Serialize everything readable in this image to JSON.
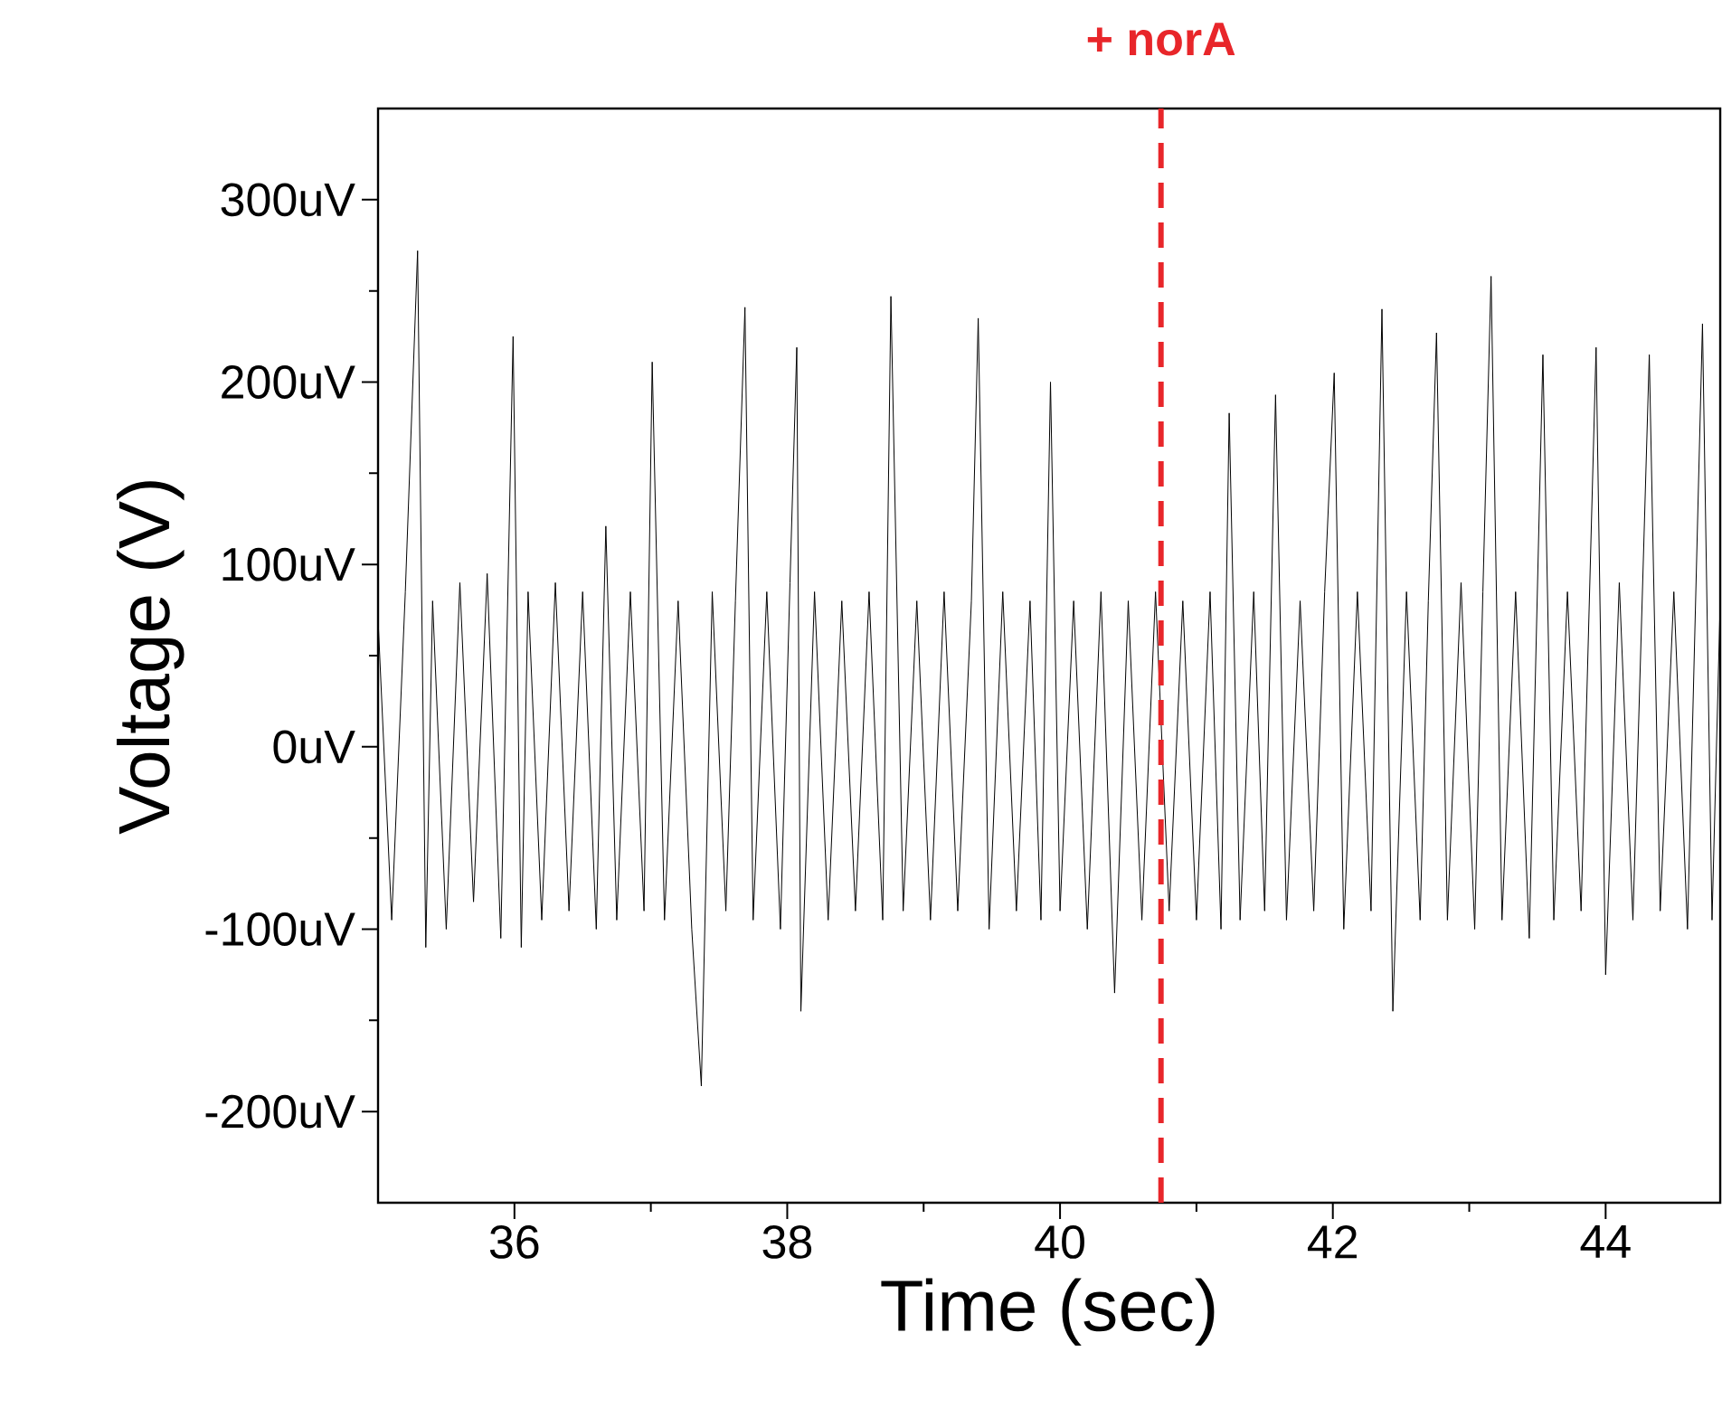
{
  "chart_data": {
    "type": "line",
    "xlabel": "Time (sec)",
    "ylabel": "Voltage (V)",
    "xlim": [
      35,
      44.84
    ],
    "ylim": [
      -250,
      350
    ],
    "xticks": [
      36,
      38,
      40,
      42,
      44
    ],
    "yticks": [
      {
        "value": -200,
        "label": "-200uV"
      },
      {
        "value": -100,
        "label": "-100uV"
      },
      {
        "value": 0,
        "label": "0uV"
      },
      {
        "value": 100,
        "label": "100uV"
      },
      {
        "value": 200,
        "label": "200uV"
      },
      {
        "value": 300,
        "label": "300uV"
      }
    ],
    "ref_lines": [
      {
        "axis": "x",
        "value": 40.74,
        "label": "+ norA",
        "color": "#e8262a",
        "line_style": "dashed"
      }
    ],
    "marker": "none",
    "line_style": "solid",
    "series": [
      {
        "color": "#000000",
        "x": [
          35.0,
          35.1,
          35.2,
          35.29,
          35.35,
          35.4,
          35.5,
          35.6,
          35.7,
          35.8,
          35.9,
          35.99,
          36.05,
          36.1,
          36.2,
          36.3,
          36.4,
          36.5,
          36.6,
          36.67,
          36.75,
          36.85,
          36.95,
          37.01,
          37.1,
          37.2,
          37.3,
          37.37,
          37.45,
          37.55,
          37.62,
          37.69,
          37.75,
          37.85,
          37.95,
          38.02,
          38.07,
          38.1,
          38.2,
          38.3,
          38.4,
          38.5,
          38.6,
          38.7,
          38.76,
          38.85,
          38.95,
          39.05,
          39.15,
          39.25,
          39.35,
          39.4,
          39.48,
          39.58,
          39.68,
          39.78,
          39.86,
          39.93,
          40.0,
          40.1,
          40.2,
          40.3,
          40.4,
          40.5,
          40.6,
          40.7,
          40.75,
          40.8,
          40.9,
          41.0,
          41.1,
          41.18,
          41.24,
          41.32,
          41.42,
          41.5,
          41.58,
          41.66,
          41.76,
          41.86,
          41.94,
          42.01,
          42.08,
          42.18,
          42.28,
          42.36,
          42.44,
          42.54,
          42.64,
          42.7,
          42.76,
          42.84,
          42.94,
          43.04,
          43.1,
          43.16,
          43.24,
          43.34,
          43.44,
          43.54,
          43.62,
          43.72,
          43.82,
          43.93,
          44.0,
          44.1,
          44.2,
          44.32,
          44.4,
          44.5,
          44.6,
          44.71,
          44.78,
          44.84
        ],
        "values": [
          70,
          -95,
          85,
          272,
          -110,
          80,
          -100,
          90,
          -85,
          95,
          -105,
          225,
          -110,
          85,
          -95,
          90,
          -90,
          85,
          -100,
          121,
          -95,
          85,
          -90,
          211,
          -95,
          80,
          -100,
          -186,
          85,
          -90,
          80,
          241,
          -95,
          85,
          -100,
          90,
          219,
          -145,
          85,
          -95,
          80,
          -90,
          85,
          -95,
          247,
          -90,
          80,
          -95,
          85,
          -90,
          80,
          235,
          -100,
          85,
          -90,
          80,
          -95,
          200,
          -90,
          80,
          -100,
          85,
          -135,
          80,
          -95,
          85,
          null,
          -90,
          80,
          -95,
          85,
          -100,
          183,
          -95,
          85,
          -90,
          193,
          -95,
          80,
          -90,
          85,
          205,
          -100,
          85,
          -90,
          240,
          -145,
          85,
          -95,
          80,
          227,
          -95,
          90,
          -100,
          85,
          258,
          -95,
          85,
          -105,
          215,
          -95,
          85,
          -90,
          219,
          -125,
          90,
          -95,
          215,
          -90,
          85,
          -100,
          232,
          -95,
          80
        ]
      }
    ]
  }
}
